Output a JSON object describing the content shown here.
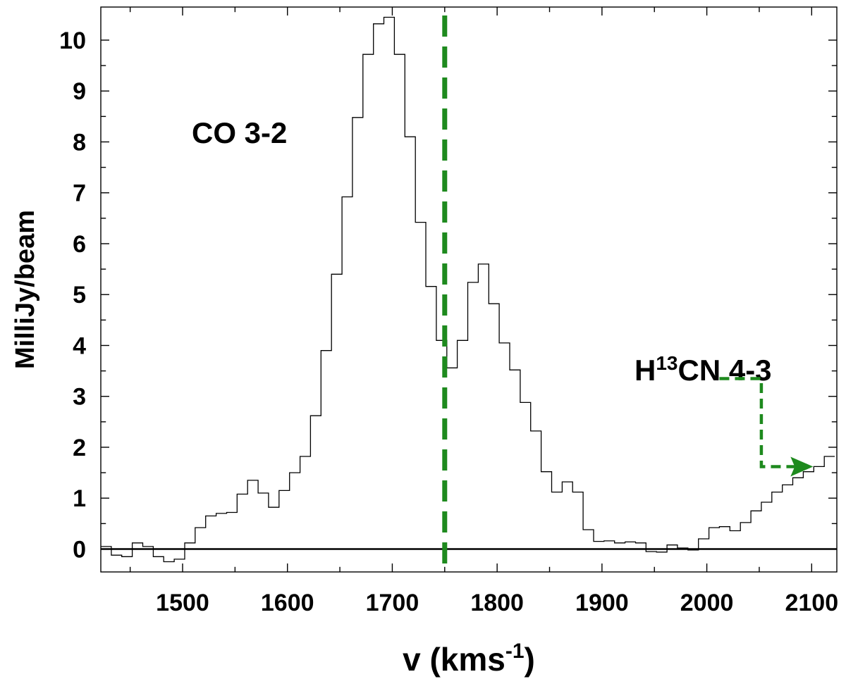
{
  "chart_data": {
    "type": "line",
    "step": true,
    "xlabel": "v (kms",
    "xlabel_sup": "-1",
    "xlabel_end": ")",
    "ylabel": "MilliJy/beam",
    "xlim": [
      1422,
      2124
    ],
    "ylim": [
      -0.45,
      10.65
    ],
    "x_ticks": [
      1500,
      1600,
      1700,
      1800,
      1900,
      2000,
      2100
    ],
    "y_ticks": [
      0,
      1,
      2,
      3,
      4,
      5,
      6,
      7,
      8,
      9,
      10
    ],
    "zero_line": 0,
    "series": [
      {
        "color": "#000000",
        "x": [
          1422,
          1432,
          1442,
          1452,
          1462,
          1472,
          1482,
          1492,
          1502,
          1512,
          1522,
          1532,
          1542,
          1552,
          1562,
          1572,
          1582,
          1592,
          1602,
          1612,
          1622,
          1632,
          1642,
          1652,
          1662,
          1672,
          1682,
          1692,
          1702,
          1712,
          1722,
          1732,
          1742,
          1752,
          1762,
          1772,
          1782,
          1792,
          1802,
          1812,
          1822,
          1832,
          1842,
          1852,
          1862,
          1872,
          1882,
          1892,
          1902,
          1912,
          1922,
          1932,
          1942,
          1952,
          1962,
          1972,
          1982,
          1992,
          2002,
          2012,
          2022,
          2032,
          2042,
          2052,
          2062,
          2072,
          2082,
          2092,
          2102,
          2112,
          2122
        ],
        "y": [
          0.05,
          -0.12,
          -0.15,
          0.12,
          0.05,
          -0.15,
          -0.25,
          -0.2,
          0.12,
          0.42,
          0.65,
          0.7,
          0.72,
          1.08,
          1.35,
          1.1,
          0.82,
          1.15,
          1.5,
          1.82,
          2.62,
          3.9,
          5.4,
          6.92,
          8.48,
          9.72,
          10.32,
          10.45,
          9.72,
          8.1,
          6.42,
          5.16,
          4.1,
          3.56,
          4.1,
          5.24,
          5.6,
          4.82,
          4.05,
          3.52,
          2.88,
          2.32,
          1.52,
          1.12,
          1.32,
          1.12,
          0.38,
          0.15,
          0.16,
          0.12,
          0.14,
          0.12,
          -0.05,
          -0.06,
          0.08,
          0.02,
          -0.02,
          0.2,
          0.42,
          0.44,
          0.36,
          0.52,
          0.75,
          0.92,
          1.12,
          1.26,
          1.4,
          1.52,
          1.62,
          1.82,
          1.82
        ]
      }
    ],
    "reference_line": {
      "x": 1750,
      "color": "#1e8a1e",
      "style": "dashed"
    },
    "annotations": [
      {
        "text": "CO 3-2"
      },
      {
        "text_main": "H",
        "text_sup": "13",
        "text_end": "CN 4-3"
      }
    ],
    "arrow": {
      "color": "#1e8a1e",
      "style": "dashed",
      "from": [
        2012,
        3.35
      ],
      "corner": [
        2052,
        3.35
      ],
      "to_y": 1.62,
      "to_x": 2100
    },
    "grid": false,
    "legend": "none"
  }
}
